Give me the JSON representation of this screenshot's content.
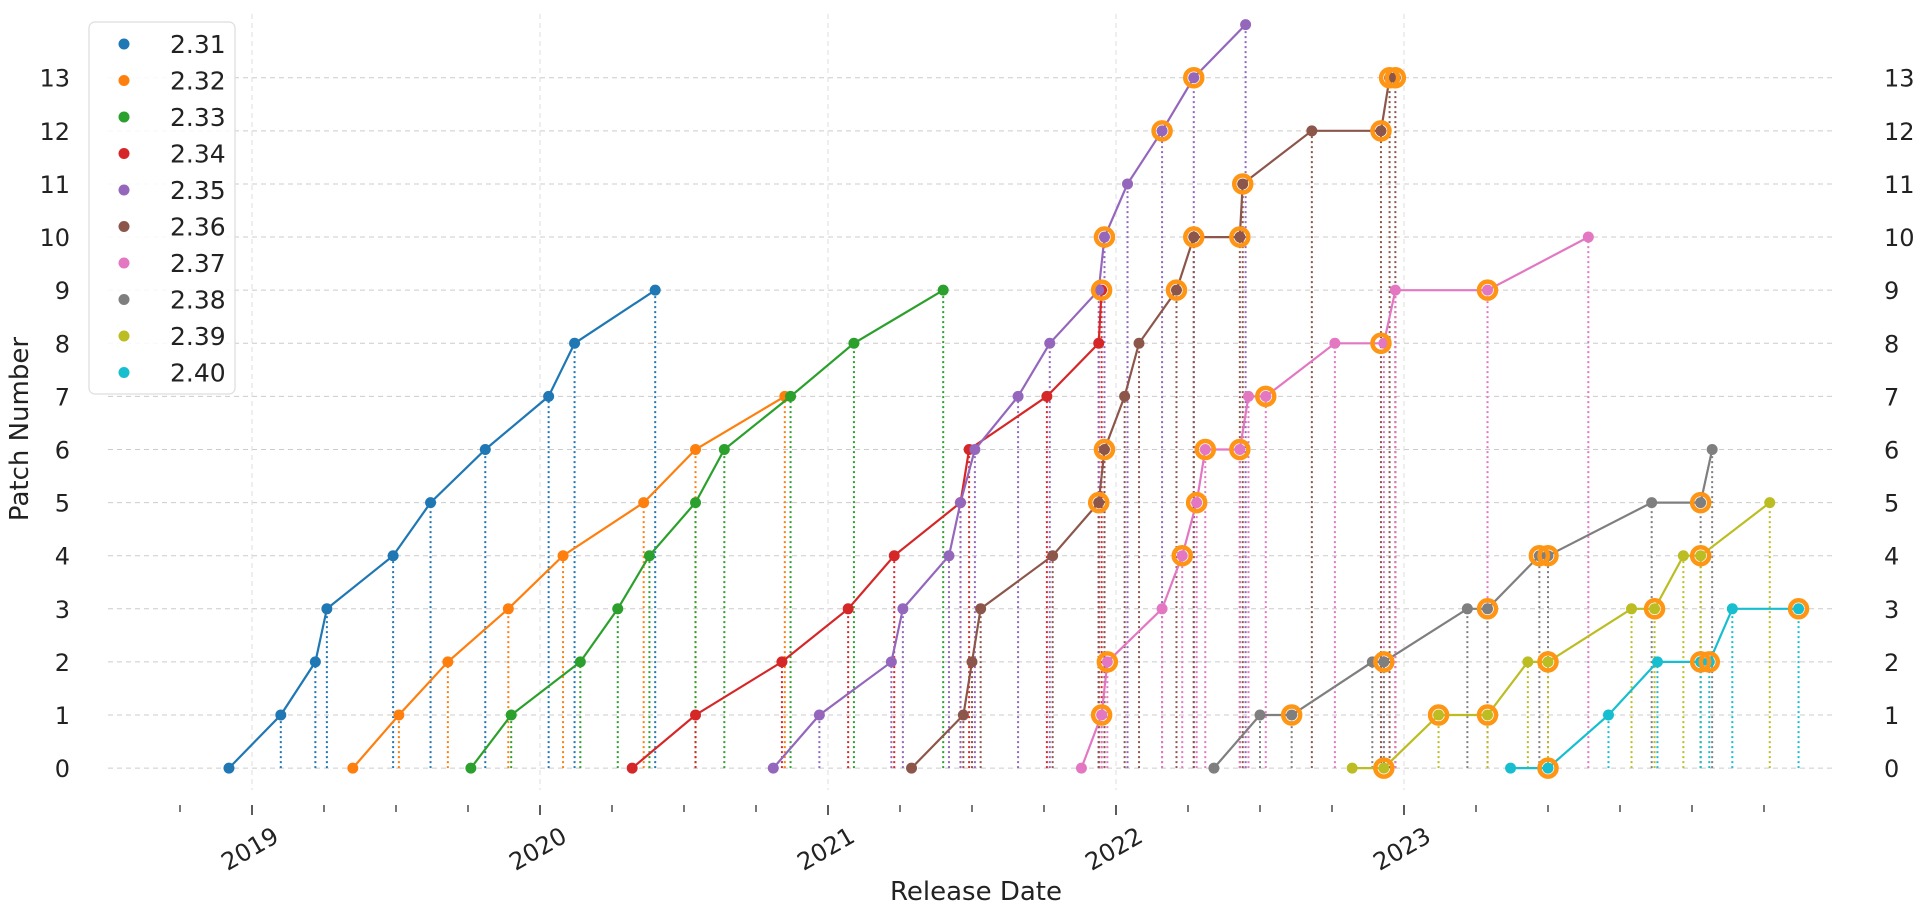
{
  "chart_data": {
    "type": "line",
    "title": "",
    "xlabel": "Release Date",
    "ylabel": "Patch Number",
    "xlim": [
      2018.5,
      2024.5
    ],
    "ylim": [
      -0.6,
      14.2
    ],
    "grid": true,
    "legend_position": "top-left",
    "y_ticks": [
      0,
      1,
      2,
      3,
      4,
      5,
      6,
      7,
      8,
      9,
      10,
      11,
      12,
      13
    ],
    "x_ticks": [
      {
        "value": 2019.0,
        "label": "2019"
      },
      {
        "value": 2020.0,
        "label": "2020"
      },
      {
        "value": 2021.0,
        "label": "2021"
      },
      {
        "value": 2022.0,
        "label": "2022"
      },
      {
        "value": 2023.0,
        "label": "2023"
      }
    ],
    "x_minor_ticks": [
      2018.75,
      2019.25,
      2019.5,
      2019.75,
      2020.25,
      2020.5,
      2020.75,
      2021.25,
      2021.5,
      2021.75,
      2022.25,
      2022.5,
      2022.75,
      2023.25,
      2023.5,
      2023.75,
      2024.0,
      2024.25
    ],
    "series": [
      {
        "name": "2.31",
        "color": "#1f77b4",
        "points": [
          {
            "x": 2018.92,
            "y": 0
          },
          {
            "x": 2019.1,
            "y": 1
          },
          {
            "x": 2019.22,
            "y": 2
          },
          {
            "x": 2019.26,
            "y": 3
          },
          {
            "x": 2019.49,
            "y": 4
          },
          {
            "x": 2019.62,
            "y": 5
          },
          {
            "x": 2019.81,
            "y": 6
          },
          {
            "x": 2020.03,
            "y": 7
          },
          {
            "x": 2020.12,
            "y": 8
          },
          {
            "x": 2020.4,
            "y": 9
          }
        ]
      },
      {
        "name": "2.32",
        "color": "#ff7f0e",
        "points": [
          {
            "x": 2019.35,
            "y": 0
          },
          {
            "x": 2019.51,
            "y": 1
          },
          {
            "x": 2019.68,
            "y": 2
          },
          {
            "x": 2019.89,
            "y": 3
          },
          {
            "x": 2020.08,
            "y": 4
          },
          {
            "x": 2020.36,
            "y": 5
          },
          {
            "x": 2020.54,
            "y": 6
          },
          {
            "x": 2020.85,
            "y": 7
          }
        ]
      },
      {
        "name": "2.33",
        "color": "#2ca02c",
        "points": [
          {
            "x": 2019.76,
            "y": 0
          },
          {
            "x": 2019.9,
            "y": 1
          },
          {
            "x": 2020.14,
            "y": 2
          },
          {
            "x": 2020.27,
            "y": 3
          },
          {
            "x": 2020.38,
            "y": 4
          },
          {
            "x": 2020.54,
            "y": 5
          },
          {
            "x": 2020.64,
            "y": 6
          },
          {
            "x": 2020.87,
            "y": 7
          },
          {
            "x": 2021.09,
            "y": 8
          },
          {
            "x": 2021.4,
            "y": 9
          }
        ]
      },
      {
        "name": "2.34",
        "color": "#d62728",
        "points": [
          {
            "x": 2020.32,
            "y": 0
          },
          {
            "x": 2020.54,
            "y": 1
          },
          {
            "x": 2020.84,
            "y": 2
          },
          {
            "x": 2021.07,
            "y": 3
          },
          {
            "x": 2021.23,
            "y": 4
          },
          {
            "x": 2021.46,
            "y": 5
          },
          {
            "x": 2021.49,
            "y": 6
          },
          {
            "x": 2021.76,
            "y": 7
          },
          {
            "x": 2021.94,
            "y": 8
          },
          {
            "x": 2021.95,
            "y": 9
          }
        ]
      },
      {
        "name": "2.35",
        "color": "#9467bd",
        "points": [
          {
            "x": 2020.81,
            "y": 0
          },
          {
            "x": 2020.97,
            "y": 1
          },
          {
            "x": 2021.22,
            "y": 2
          },
          {
            "x": 2021.26,
            "y": 3
          },
          {
            "x": 2021.42,
            "y": 4
          },
          {
            "x": 2021.46,
            "y": 5
          },
          {
            "x": 2021.51,
            "y": 6
          },
          {
            "x": 2021.66,
            "y": 7
          },
          {
            "x": 2021.77,
            "y": 8
          },
          {
            "x": 2021.94,
            "y": 9
          },
          {
            "x": 2021.96,
            "y": 10
          },
          {
            "x": 2022.04,
            "y": 11
          },
          {
            "x": 2022.16,
            "y": 12
          },
          {
            "x": 2022.27,
            "y": 13
          },
          {
            "x": 2022.45,
            "y": 14
          }
        ]
      },
      {
        "name": "2.36",
        "color": "#8c564b",
        "points": [
          {
            "x": 2021.29,
            "y": 0
          },
          {
            "x": 2021.47,
            "y": 1
          },
          {
            "x": 2021.5,
            "y": 2
          },
          {
            "x": 2021.53,
            "y": 3
          },
          {
            "x": 2021.78,
            "y": 4
          },
          {
            "x": 2021.94,
            "y": 5
          },
          {
            "x": 2021.96,
            "y": 6
          },
          {
            "x": 2022.03,
            "y": 7
          },
          {
            "x": 2022.08,
            "y": 8
          },
          {
            "x": 2022.21,
            "y": 9
          },
          {
            "x": 2022.27,
            "y": 10
          },
          {
            "x": 2022.43,
            "y": 10
          },
          {
            "x": 2022.44,
            "y": 11
          },
          {
            "x": 2022.68,
            "y": 12
          },
          {
            "x": 2022.92,
            "y": 12
          },
          {
            "x": 2022.95,
            "y": 13
          },
          {
            "x": 2022.97,
            "y": 13
          }
        ]
      },
      {
        "name": "2.37",
        "color": "#e377c2",
        "points": [
          {
            "x": 2021.88,
            "y": 0
          },
          {
            "x": 2021.95,
            "y": 1
          },
          {
            "x": 2021.97,
            "y": 2
          },
          {
            "x": 2022.16,
            "y": 3
          },
          {
            "x": 2022.23,
            "y": 4
          },
          {
            "x": 2022.28,
            "y": 5
          },
          {
            "x": 2022.31,
            "y": 6
          },
          {
            "x": 2022.43,
            "y": 6
          },
          {
            "x": 2022.46,
            "y": 7
          },
          {
            "x": 2022.52,
            "y": 7
          },
          {
            "x": 2022.76,
            "y": 8
          },
          {
            "x": 2022.93,
            "y": 8
          },
          {
            "x": 2022.97,
            "y": 9
          },
          {
            "x": 2023.29,
            "y": 9
          },
          {
            "x": 2023.64,
            "y": 10
          }
        ]
      },
      {
        "name": "2.38",
        "color": "#7f7f7f",
        "points": [
          {
            "x": 2022.34,
            "y": 0
          },
          {
            "x": 2022.5,
            "y": 1
          },
          {
            "x": 2022.61,
            "y": 1
          },
          {
            "x": 2022.89,
            "y": 2
          },
          {
            "x": 2022.93,
            "y": 2
          },
          {
            "x": 2023.22,
            "y": 3
          },
          {
            "x": 2023.29,
            "y": 3
          },
          {
            "x": 2023.47,
            "y": 4
          },
          {
            "x": 2023.5,
            "y": 4
          },
          {
            "x": 2023.86,
            "y": 5
          },
          {
            "x": 2024.03,
            "y": 5
          },
          {
            "x": 2024.07,
            "y": 6
          }
        ]
      },
      {
        "name": "2.39",
        "color": "#bcbd22",
        "points": [
          {
            "x": 2022.82,
            "y": 0
          },
          {
            "x": 2022.93,
            "y": 0
          },
          {
            "x": 2023.12,
            "y": 1
          },
          {
            "x": 2023.29,
            "y": 1
          },
          {
            "x": 2023.43,
            "y": 2
          },
          {
            "x": 2023.5,
            "y": 2
          },
          {
            "x": 2023.79,
            "y": 3
          },
          {
            "x": 2023.87,
            "y": 3
          },
          {
            "x": 2023.97,
            "y": 4
          },
          {
            "x": 2024.03,
            "y": 4
          },
          {
            "x": 2024.27,
            "y": 5
          }
        ]
      },
      {
        "name": "2.40",
        "color": "#17becf",
        "points": [
          {
            "x": 2023.37,
            "y": 0
          },
          {
            "x": 2023.5,
            "y": 0
          },
          {
            "x": 2023.71,
            "y": 1
          },
          {
            "x": 2023.88,
            "y": 2
          },
          {
            "x": 2024.03,
            "y": 2
          },
          {
            "x": 2024.06,
            "y": 2
          },
          {
            "x": 2024.14,
            "y": 3
          },
          {
            "x": 2024.37,
            "y": 3
          }
        ]
      }
    ],
    "highlighted_points": [
      {
        "x": 2021.95,
        "y": 1
      },
      {
        "x": 2021.97,
        "y": 2
      },
      {
        "x": 2021.94,
        "y": 5
      },
      {
        "x": 2021.96,
        "y": 6
      },
      {
        "x": 2021.95,
        "y": 9
      },
      {
        "x": 2021.96,
        "y": 10
      },
      {
        "x": 2022.16,
        "y": 12
      },
      {
        "x": 2022.27,
        "y": 13
      },
      {
        "x": 2022.21,
        "y": 9
      },
      {
        "x": 2022.27,
        "y": 10
      },
      {
        "x": 2022.23,
        "y": 4
      },
      {
        "x": 2022.28,
        "y": 5
      },
      {
        "x": 2022.31,
        "y": 6
      },
      {
        "x": 2022.43,
        "y": 6
      },
      {
        "x": 2022.43,
        "y": 10
      },
      {
        "x": 2022.44,
        "y": 11
      },
      {
        "x": 2022.52,
        "y": 7
      },
      {
        "x": 2022.61,
        "y": 1
      },
      {
        "x": 2022.92,
        "y": 8
      },
      {
        "x": 2022.92,
        "y": 12
      },
      {
        "x": 2022.95,
        "y": 13
      },
      {
        "x": 2022.97,
        "y": 13
      },
      {
        "x": 2022.93,
        "y": 2
      },
      {
        "x": 2022.93,
        "y": 0
      },
      {
        "x": 2023.12,
        "y": 1
      },
      {
        "x": 2023.29,
        "y": 1
      },
      {
        "x": 2023.29,
        "y": 3
      },
      {
        "x": 2023.29,
        "y": 9
      },
      {
        "x": 2023.47,
        "y": 4
      },
      {
        "x": 2023.5,
        "y": 4
      },
      {
        "x": 2023.5,
        "y": 2
      },
      {
        "x": 2023.5,
        "y": 0
      },
      {
        "x": 2023.87,
        "y": 3
      },
      {
        "x": 2024.03,
        "y": 4
      },
      {
        "x": 2024.03,
        "y": 5
      },
      {
        "x": 2024.03,
        "y": 2
      },
      {
        "x": 2024.06,
        "y": 2
      },
      {
        "x": 2024.37,
        "y": 3
      }
    ],
    "highlight_color": "#ff9514"
  }
}
